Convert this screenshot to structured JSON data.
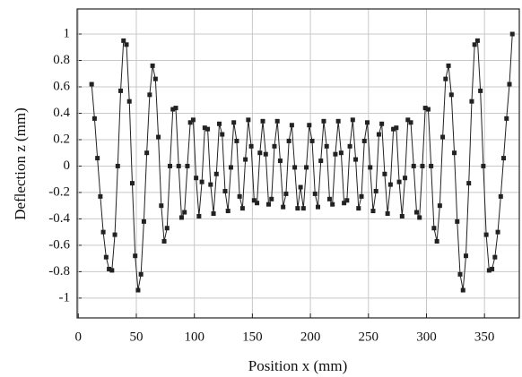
{
  "chart_data": {
    "type": "line",
    "xlabel": "Position x (mm)",
    "ylabel": "Deflection z (mm)",
    "xlim": [
      -1,
      380
    ],
    "ylim": [
      -1.15,
      1.19
    ],
    "xticks": [
      0,
      50,
      100,
      150,
      200,
      250,
      300,
      350
    ],
    "yticks": [
      -1,
      -0.8,
      -0.6,
      -0.4,
      -0.2,
      0,
      0.2,
      0.4,
      0.6,
      0.8,
      1
    ],
    "grid": true,
    "x": [
      11.5,
      14,
      16.5,
      19,
      21.5,
      24,
      26.5,
      29,
      31.5,
      34,
      36.5,
      39,
      41.5,
      44,
      46.5,
      49,
      51.5,
      54,
      56.5,
      59,
      61.5,
      64,
      66.5,
      69,
      71.5,
      74,
      76.5,
      79,
      81.5,
      84,
      86.5,
      89,
      91.5,
      94,
      96.5,
      99,
      101.5,
      104,
      106.5,
      109,
      111.5,
      114,
      116.5,
      119,
      121.5,
      124,
      126.5,
      129,
      131.5,
      134,
      136.5,
      139,
      141.5,
      144,
      146.5,
      149,
      151.5,
      154,
      156.5,
      159,
      161.5,
      164,
      166.5,
      169,
      171.5,
      174,
      176.5,
      179,
      181.5,
      184,
      186.5,
      189,
      191.5,
      194,
      196.5,
      199,
      201.5,
      204,
      206.5,
      209,
      211.5,
      214,
      216.5,
      219,
      221.5,
      224,
      226.5,
      229,
      231.5,
      234,
      236.5,
      239,
      241.5,
      244,
      246.5,
      249,
      251.5,
      254,
      256.5,
      259,
      261.5,
      264,
      266.5,
      269,
      271.5,
      274,
      276.5,
      279,
      281.5,
      284,
      286.5,
      289,
      291.5,
      294,
      296.5,
      299,
      301.5,
      304,
      306.5,
      309,
      311.5,
      314,
      316.5,
      319,
      321.5,
      324,
      326.5,
      329,
      331.5,
      334,
      336.5,
      339,
      341.5,
      344,
      346.5,
      349,
      351.5,
      354,
      356.5,
      359,
      361.5,
      364,
      366.5,
      369,
      371.5,
      374
    ],
    "series": [
      {
        "color": "#222222",
        "values": [
          0.62,
          0.36,
          0.06,
          -0.23,
          -0.5,
          -0.69,
          -0.78,
          -0.79,
          -0.52,
          0,
          0.57,
          0.95,
          0.92,
          0.49,
          -0.13,
          -0.68,
          -0.94,
          -0.82,
          -0.42,
          0.1,
          0.54,
          0.76,
          0.66,
          0.22,
          -0.3,
          -0.57,
          -0.47,
          0,
          0.43,
          0.44,
          0,
          -0.39,
          -0.35,
          0,
          0.33,
          0.35,
          -0.09,
          -0.38,
          -0.12,
          0.29,
          0.28,
          -0.14,
          -0.36,
          -0.06,
          0.32,
          0.24,
          -0.19,
          -0.34,
          -0.01,
          0.33,
          0.19,
          -0.23,
          -0.32,
          0.05,
          0.35,
          0.15,
          -0.26,
          -0.28,
          0.1,
          0.34,
          0.09,
          -0.29,
          -0.25,
          0.15,
          0.34,
          0.04,
          -0.31,
          -0.21,
          0.19,
          0.31,
          -0.01,
          -0.32,
          -0.16,
          -0.32,
          -0.01,
          0.31,
          0.19,
          -0.21,
          -0.31,
          0.04,
          0.34,
          0.15,
          -0.25,
          -0.29,
          0.09,
          0.34,
          0.1,
          -0.28,
          -0.26,
          0.15,
          0.35,
          0.05,
          -0.32,
          -0.23,
          0.19,
          0.33,
          -0.01,
          -0.34,
          -0.19,
          0.24,
          0.32,
          -0.06,
          -0.36,
          -0.14,
          0.28,
          0.29,
          -0.12,
          -0.38,
          -0.09,
          0.35,
          0.33,
          0,
          -0.35,
          -0.39,
          0,
          0.44,
          0.43,
          0,
          -0.47,
          -0.57,
          -0.3,
          0.22,
          0.66,
          0.76,
          0.54,
          0.1,
          -0.42,
          -0.82,
          -0.94,
          -0.68,
          -0.13,
          0.49,
          0.92,
          0.95,
          0.57,
          0,
          -0.52,
          -0.79,
          -0.78,
          -0.69,
          -0.5,
          -0.23,
          0.06,
          0.36,
          0.62,
          1.0
        ]
      }
    ]
  }
}
